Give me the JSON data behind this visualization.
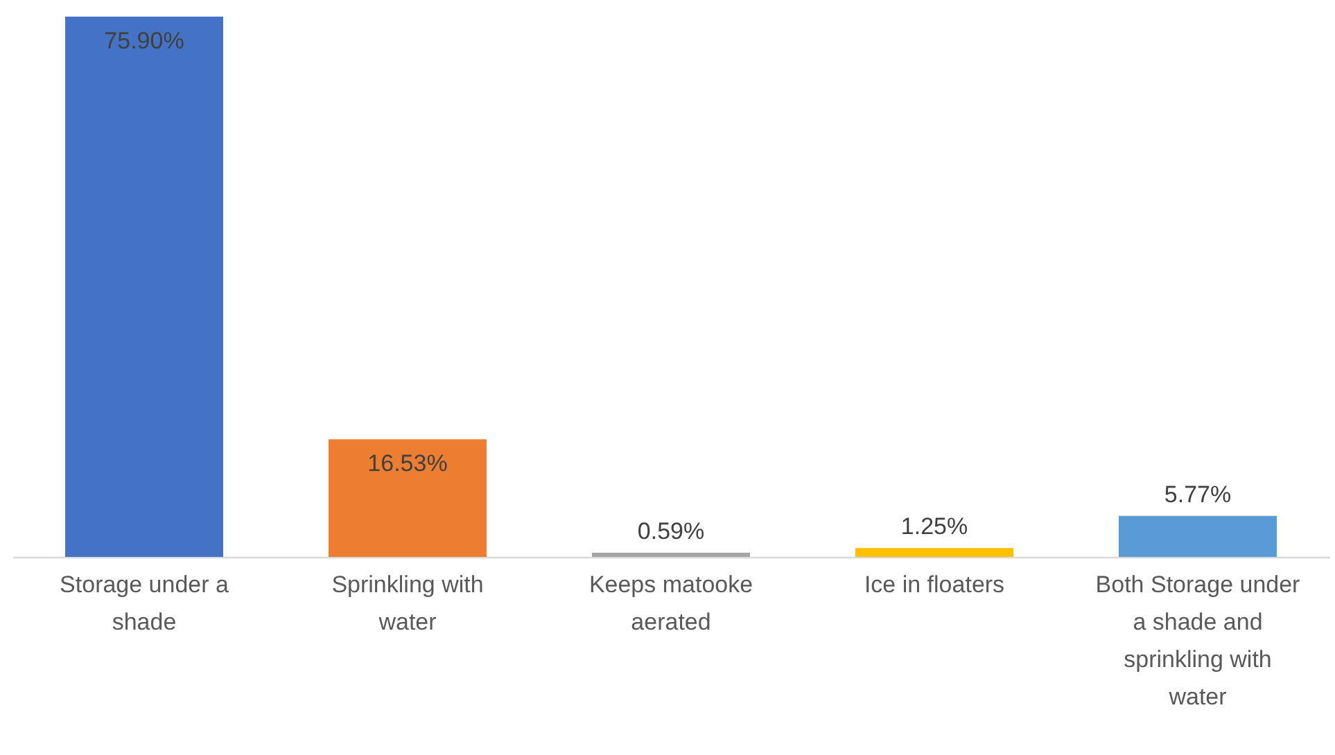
{
  "chart_data": {
    "type": "bar",
    "categories": [
      "Storage under a shade",
      "Sprinkling with water",
      "Keeps matooke aerated",
      "Ice in floaters",
      "Both Storage under a shade and sprinkling with water"
    ],
    "values": [
      75.9,
      16.53,
      0.59,
      1.25,
      5.77
    ],
    "colors": [
      "#4472c4",
      "#ed7d31",
      "#a5a5a5",
      "#ffc000",
      "#5b9bd5"
    ],
    "value_labels": [
      "75.90%",
      "16.53%",
      "0.59%",
      "1.25%",
      "5.77%"
    ]
  }
}
